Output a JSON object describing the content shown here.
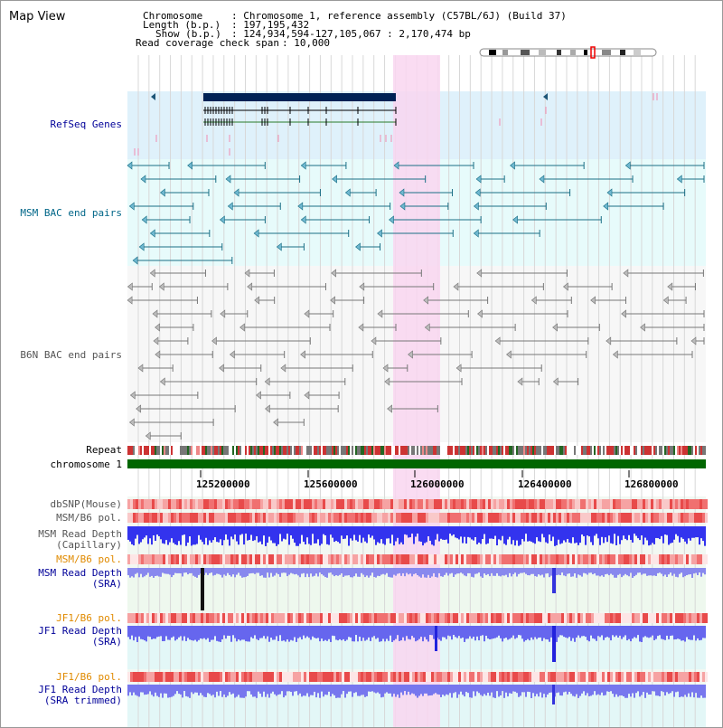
{
  "title": "Map View",
  "header": {
    "chromosome_label": "Chromosome",
    "chromosome_value": ": Chromosome 1, reference assembly (C57BL/6J) (Build 37)",
    "length_label": "Length (b.p.)",
    "length_value": ": 197,195,432",
    "show_label": "Show (b.p.)",
    "show_value": ": 124,934,594-127,105,067 : 2,170,474 bp",
    "coverage_label": "Read coverage check span",
    "coverage_value": ": 10,000"
  },
  "tracks": {
    "refseq": "RefSeq Genes",
    "msm_bac": "MSM BAC end pairs",
    "b6n_bac": "B6N BAC end pairs",
    "repeat": "Repeat",
    "chromosome": "chromosome 1",
    "dbsnp": "dbSNP(Mouse)",
    "msm_b6_pol_1": "MSM/B6 pol.",
    "msm_depth_cap": "MSM Read Depth\n(Capillary)",
    "msm_b6_pol_2": "MSM/B6 pol.",
    "msm_depth_sra": "MSM Read Depth\n(SRA)",
    "jf1_b6_pol_1": "JF1/B6 pol.",
    "jf1_depth_sra": "JF1 Read Depth\n(SRA)",
    "jf1_b6_pol_2": "JF1/B6 pol.",
    "jf1_depth_trim": "JF1 Read Depth\n(SRA trimmed)"
  },
  "axis": {
    "ticks": [
      "125200000",
      "125600000",
      "126000000",
      "126400000",
      "126800000"
    ]
  },
  "colors": {
    "refseq_bg": "#dff1fb",
    "msm_bac_bg": "#e7fbfb",
    "b6n_bac_bg": "#f7f7f7",
    "highlight": "#f9d6f0",
    "chromosome_bar": "#006600",
    "depth_blue": "#3333ee",
    "depth_light": "#8888ee"
  }
}
